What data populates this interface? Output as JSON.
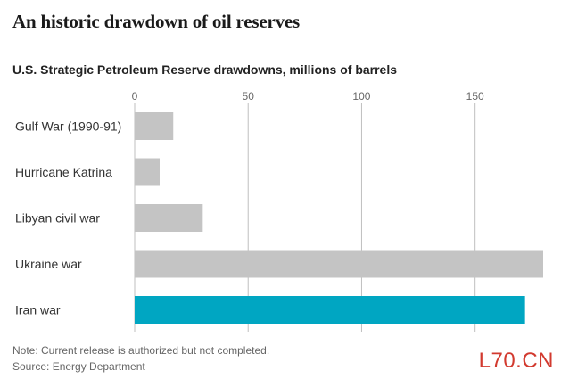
{
  "headline": "An historic drawdown of oil reserves",
  "colors": {
    "default_bar": "#c4c4c4",
    "highlight_bar": "#00a6c2",
    "gridline": "#bfbfbf"
  },
  "notes": {
    "note": "Note: Current release is authorized but not completed.",
    "source": "Source: Energy Department"
  },
  "watermark": "L70.CN",
  "chart_data": {
    "type": "bar",
    "orientation": "horizontal",
    "title": "U.S. Strategic Petroleum Reserve drawdowns, millions of barrels",
    "categories": [
      "Gulf War (1990-91)",
      "Hurricane Katrina",
      "Libyan civil war",
      "Ukraine war",
      "Iran war"
    ],
    "values": [
      17,
      11,
      30,
      180,
      172
    ],
    "highlight": [
      "Iran war"
    ],
    "xlim": [
      0,
      180
    ],
    "xticks": [
      0,
      50,
      100,
      150
    ],
    "grid": true
  }
}
